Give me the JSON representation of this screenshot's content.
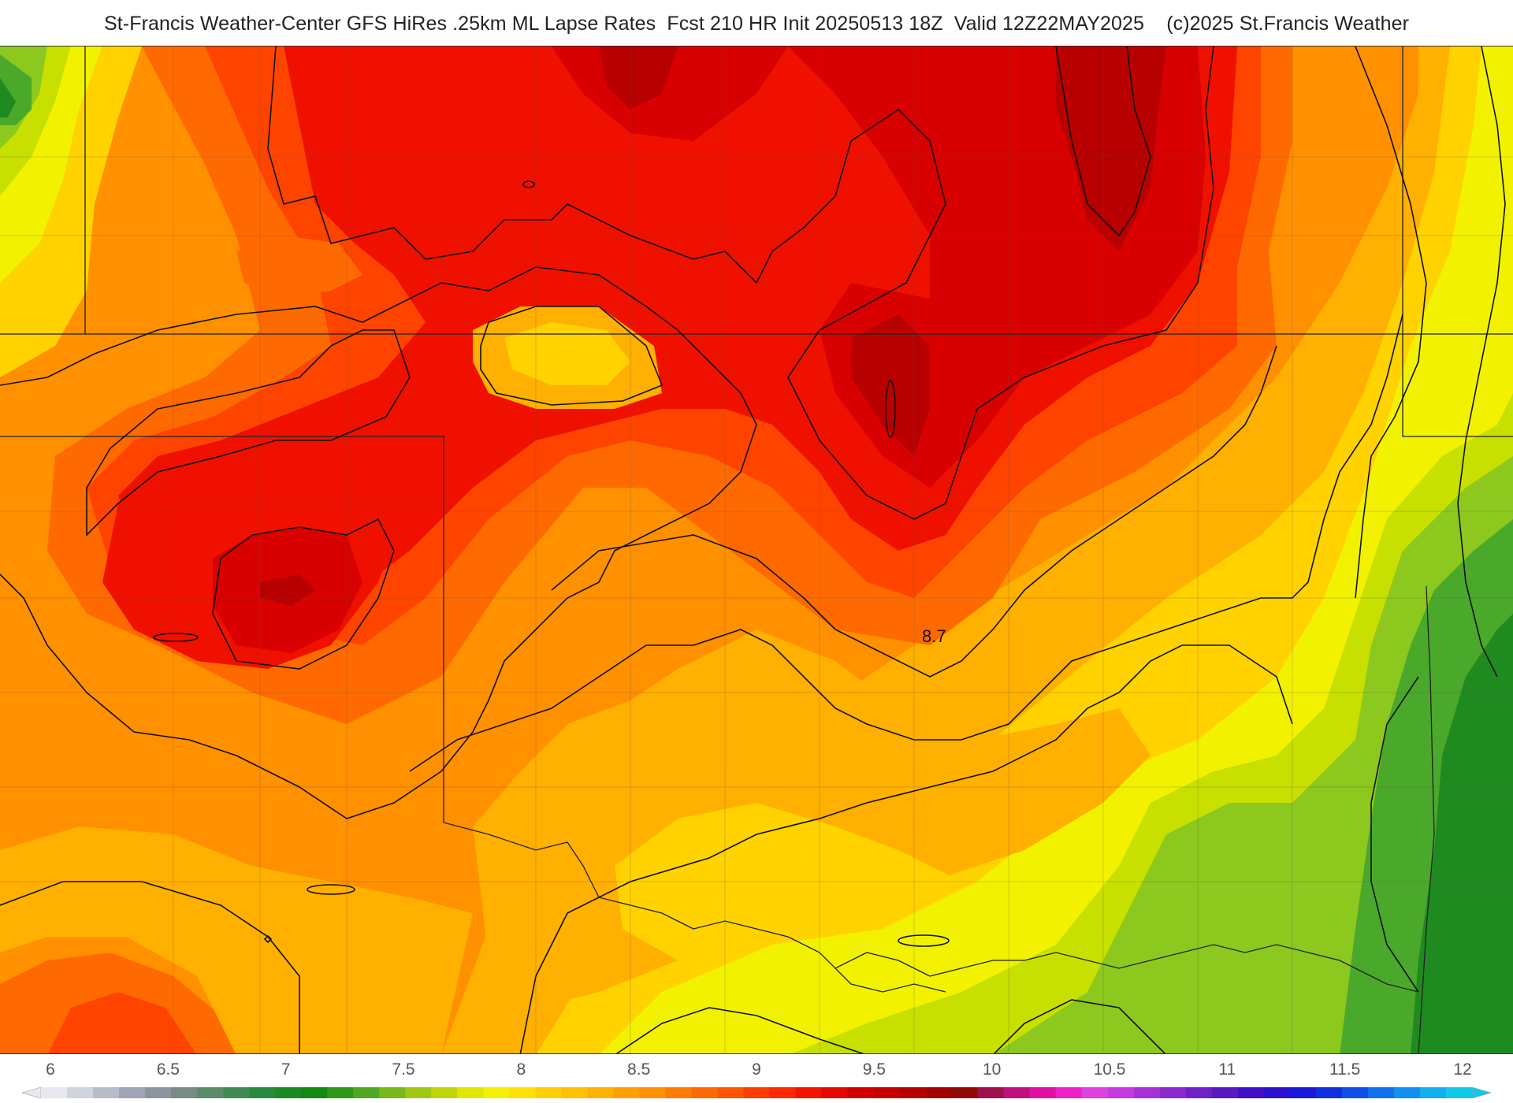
{
  "title": "St-Francis Weather-Center GFS HiRes .25km ML Lapse Rates  Fcst 210 HR Init 20250513 18Z  Valid 12Z22MAY2025    (c)2025 St.Francis Weather",
  "map": {
    "contour_label": "8.7",
    "fill_colors": {
      "dark_green": "#1f8a1f",
      "green": "#4aa82a",
      "light_green": "#8cc81e",
      "yellow_green": "#c8e000",
      "yellow": "#f2f200",
      "gold": "#ffd200",
      "amber": "#ffb000",
      "orange": "#ff9000",
      "dark_orange": "#ff6a00",
      "red_orange": "#ff4400",
      "red": "#f01000",
      "dark_red": "#d80000",
      "maroon": "#b80000"
    }
  },
  "legend": {
    "ticks": [
      "6",
      "6.5",
      "7",
      "7.5",
      "8",
      "8.5",
      "9",
      "9.5",
      "10",
      "10.5",
      "11",
      "11.5",
      "12"
    ],
    "colors": [
      "#e8e8ee",
      "#d0d4dc",
      "#b8bcc8",
      "#a0a4b4",
      "#8c94a0",
      "#768c84",
      "#5a8c6c",
      "#3e8c54",
      "#2a8a3c",
      "#1c8a24",
      "#108a10",
      "#2c9a18",
      "#50a820",
      "#78b818",
      "#a0c810",
      "#c0d808",
      "#e0e800",
      "#f4f000",
      "#ffe000",
      "#ffd000",
      "#ffc000",
      "#ffb000",
      "#ffa000",
      "#ff9000",
      "#ff7c00",
      "#ff6800",
      "#ff5400",
      "#ff3c00",
      "#ff2800",
      "#f41400",
      "#e40800",
      "#d40000",
      "#c40000",
      "#b40000",
      "#a40000",
      "#940808",
      "#a0104c",
      "#c0107c",
      "#e010a4",
      "#f020c8",
      "#e040e0",
      "#c838e0",
      "#a830d8",
      "#8c28d0",
      "#7020c8",
      "#5818c4",
      "#4010c8",
      "#2c10d0",
      "#1c18d8",
      "#1030e0",
      "#1050e8",
      "#1070f0",
      "#1090f0",
      "#10b0f0",
      "#10c8e8"
    ]
  }
}
